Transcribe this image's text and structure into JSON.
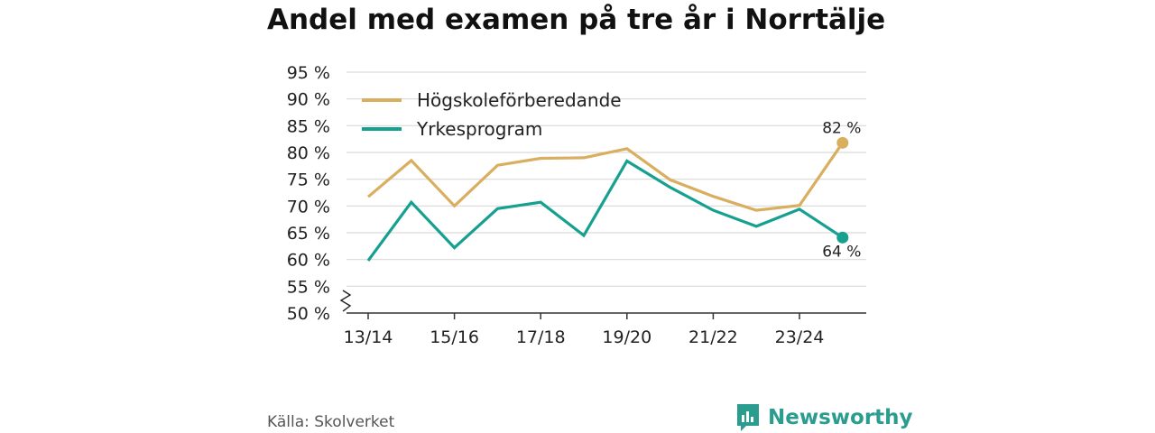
{
  "chart_data": {
    "type": "line",
    "title": "Andel med examen på tre år i Norrtälje",
    "x": [
      "13/14",
      "14/15",
      "15/16",
      "16/17",
      "17/18",
      "18/19",
      "19/20",
      "20/21",
      "21/22",
      "22/23",
      "23/24",
      "24/25"
    ],
    "x_tick_labels": [
      "13/14",
      "15/16",
      "17/18",
      "19/20",
      "21/22",
      "23/24"
    ],
    "y_tick_labels": [
      "50 %",
      "55 %",
      "60 %",
      "65 %",
      "70 %",
      "75 %",
      "80 %",
      "85 %",
      "90 %",
      "95 %"
    ],
    "ylim": [
      50,
      95
    ],
    "y_axis_break": true,
    "grid": "horizontal",
    "legend_position": "top-left",
    "series": [
      {
        "name": "Högskoleförberedande",
        "color": "#d9ae5f",
        "values": [
          71.7,
          78.5,
          70.0,
          77.6,
          78.9,
          79.0,
          80.7,
          74.9,
          71.8,
          69.2,
          70.1,
          81.8
        ],
        "end_label": "82 %"
      },
      {
        "name": "Yrkesprogram",
        "color": "#16a08f",
        "values": [
          59.8,
          70.7,
          62.2,
          69.5,
          70.7,
          64.5,
          78.4,
          73.5,
          69.2,
          66.2,
          69.4,
          64.1
        ],
        "end_label": "64 %"
      }
    ]
  },
  "source": "Källa: Skolverket",
  "brand": {
    "name": "Newsworthy",
    "color": "#2a9d8f"
  }
}
